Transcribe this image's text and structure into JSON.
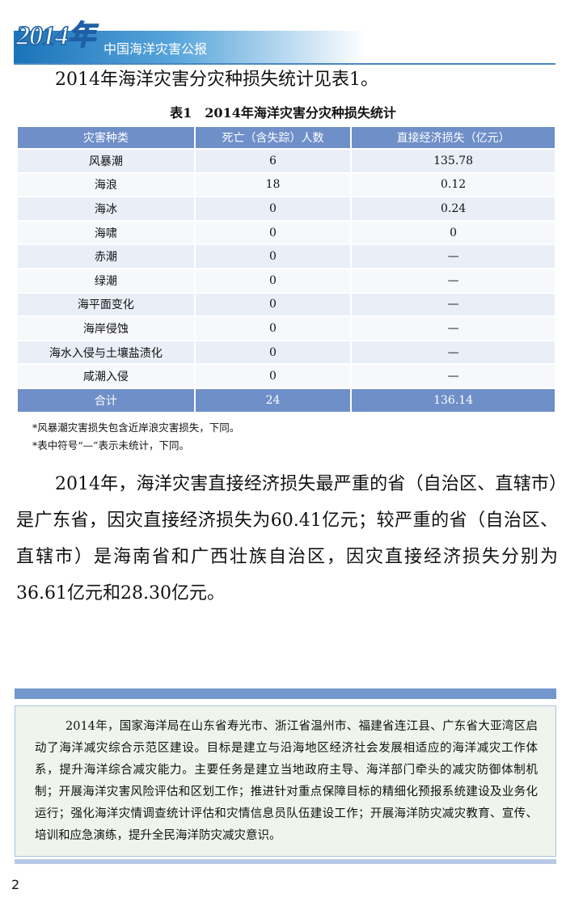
{
  "header": {
    "year": "2014年",
    "title": "中国海洋灾害公报"
  },
  "intro": "2014年海洋灾害分灾种损失统计见表1。",
  "table": {
    "caption": "表1　2014年海洋灾害分灾种损失统计",
    "columns": [
      "灾害种类",
      "死亡（含失踪）人数",
      "直接经济损失（亿元）"
    ],
    "rows": [
      [
        "风暴潮",
        "6",
        "135.78"
      ],
      [
        "海浪",
        "18",
        "0.12"
      ],
      [
        "海冰",
        "0",
        "0.24"
      ],
      [
        "海啸",
        "0",
        "0"
      ],
      [
        "赤潮",
        "0",
        "—"
      ],
      [
        "绿潮",
        "0",
        "—"
      ],
      [
        "海平面变化",
        "0",
        "—"
      ],
      [
        "海岸侵蚀",
        "0",
        "—"
      ],
      [
        "海水入侵与土壤盐渍化",
        "0",
        "—"
      ],
      [
        "咸潮入侵",
        "0",
        "—"
      ]
    ],
    "total": [
      "合计",
      "24",
      "136.14"
    ]
  },
  "notes": [
    "*风暴潮灾害损失包含近岸浪灾害损失，下同。",
    "*表中符号“—”表示未统计，下同。"
  ],
  "paragraph": "2014年，海洋灾害直接经济损失最严重的省（自治区、直辖市）是广东省，因灾直接经济损失为60.41亿元；较严重的省（自治区、直辖市）是海南省和广西壮族自治区，因灾直接经济损失分别为36.61亿元和28.30亿元。",
  "box": "2014年，国家海洋局在山东省寿光市、浙江省温州市、福建省连江县、广东省大亚湾区启动了海洋减灾综合示范区建设。目标是建立与沿海地区经济社会发展相适应的海洋减灾工作体系，提升海洋综合减灾能力。主要任务是建立当地政府主导、海洋部门牵头的减灾防御体制机制；开展海洋灾害风险评估和区划工作；推进针对重点保障目标的精细化预报系统建设及业务化运行；强化海洋灾情调查统计评估和灾情信息员队伍建设工作；开展海洋防灾减灾教育、宣传、培训和应急演练，提升全民海洋防灾减灾意识。",
  "page_number": "2"
}
